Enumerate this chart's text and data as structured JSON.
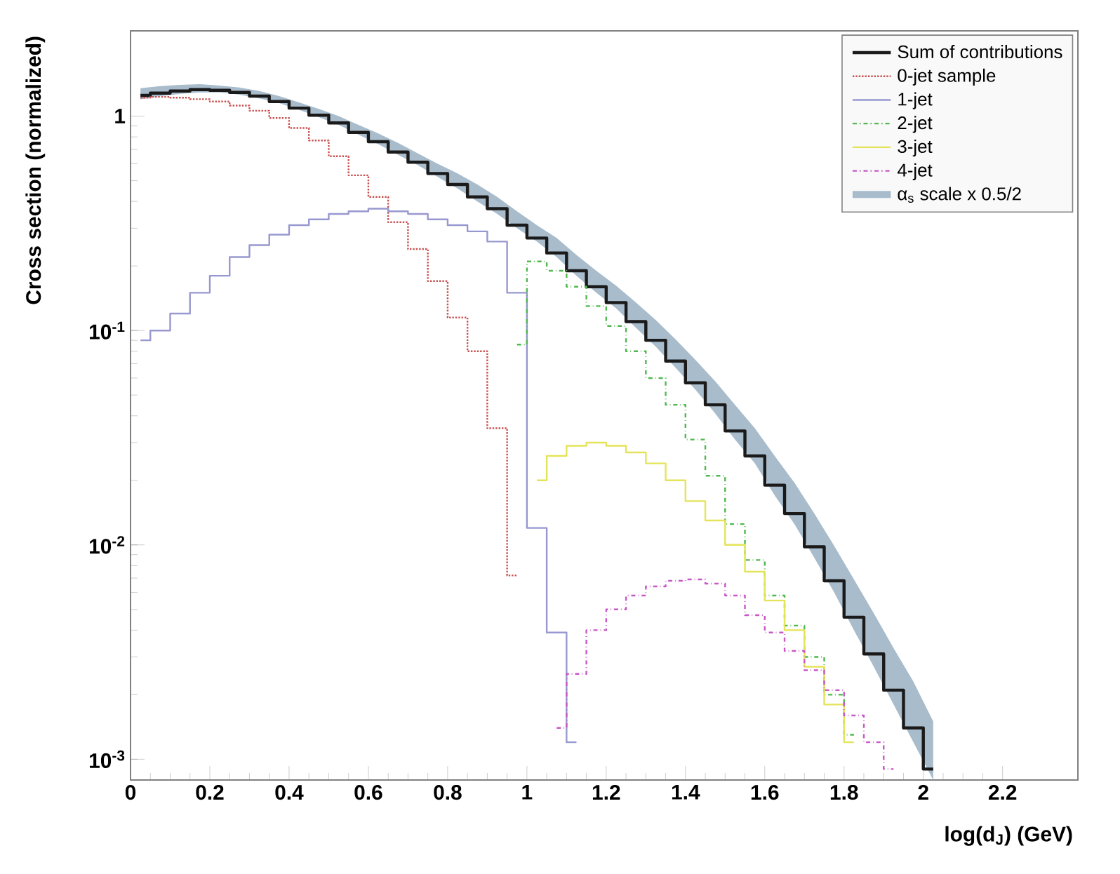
{
  "chart_data": {
    "type": "step",
    "xlabel": "log(d$_{J}$) (GeV)",
    "ylabel": "Cross section (normalized)",
    "log": "y",
    "xlim": [
      0,
      2.39
    ],
    "ylim": [
      0.0008,
      2.5
    ],
    "xticks": [
      0,
      0.2,
      0.4,
      0.6,
      0.8,
      1,
      1.2,
      1.4,
      1.6,
      1.8,
      2,
      2.2
    ],
    "yticks": [
      {
        "value": 0.001,
        "label": "10$^{-3}$"
      },
      {
        "value": 0.01,
        "label": "10$^{-2}$"
      },
      {
        "value": 0.1,
        "label": "10$^{-1}$"
      },
      1
    ],
    "grid": false,
    "marker": "none",
    "legend": "top right",
    "annotations": [
      "α$_{s}$ scale x 0.5/2"
    ],
    "series": [
      {
        "name": "Sum of contributions",
        "color": "#1a1a1a",
        "line_style": "solid",
        "x": [
          0.025,
          0.075,
          0.125,
          0.175,
          0.225,
          0.275,
          0.325,
          0.375,
          0.425,
          0.475,
          0.525,
          0.575,
          0.625,
          0.675,
          0.725,
          0.775,
          0.825,
          0.875,
          0.925,
          0.975,
          1.025,
          1.075,
          1.125,
          1.175,
          1.225,
          1.275,
          1.325,
          1.375,
          1.425,
          1.475,
          1.525,
          1.575,
          1.625,
          1.675,
          1.725,
          1.775,
          1.825,
          1.875,
          1.925,
          1.975,
          2.025
        ],
        "values": [
          1.25,
          1.28,
          1.31,
          1.33,
          1.32,
          1.29,
          1.24,
          1.17,
          1.09,
          1.01,
          0.93,
          0.84,
          0.76,
          0.68,
          0.61,
          0.54,
          0.48,
          0.42,
          0.37,
          0.31,
          0.27,
          0.23,
          0.19,
          0.16,
          0.135,
          0.11,
          0.09,
          0.072,
          0.057,
          0.045,
          0.034,
          0.026,
          0.019,
          0.014,
          0.0098,
          0.0068,
          0.0046,
          0.0031,
          0.0021,
          0.0014,
          0.0009
        ],
        "lower": [
          1.2,
          1.24,
          1.27,
          1.29,
          1.29,
          1.26,
          1.21,
          1.15,
          1.07,
          0.99,
          0.91,
          0.82,
          0.74,
          0.66,
          0.59,
          0.52,
          0.46,
          0.4,
          0.35,
          0.3,
          0.26,
          0.22,
          0.18,
          0.15,
          0.127,
          0.103,
          0.084,
          0.067,
          0.053,
          0.041,
          0.031,
          0.024,
          0.017,
          0.0125,
          0.0087,
          0.006,
          0.004,
          0.0027,
          0.0018,
          0.0012,
          0.0008
        ],
        "upper": [
          1.35,
          1.38,
          1.4,
          1.41,
          1.39,
          1.36,
          1.31,
          1.24,
          1.16,
          1.08,
          1.0,
          0.91,
          0.83,
          0.75,
          0.67,
          0.6,
          0.54,
          0.48,
          0.42,
          0.36,
          0.31,
          0.27,
          0.225,
          0.19,
          0.162,
          0.135,
          0.112,
          0.091,
          0.073,
          0.058,
          0.045,
          0.035,
          0.026,
          0.0195,
          0.014,
          0.0099,
          0.0069,
          0.0048,
          0.0033,
          0.0023,
          0.0015
        ]
      },
      {
        "name": "0-jet sample",
        "color": "#c85050",
        "line_style": "dotted",
        "x": [
          0.025,
          0.075,
          0.125,
          0.175,
          0.225,
          0.275,
          0.325,
          0.375,
          0.425,
          0.475,
          0.525,
          0.575,
          0.625,
          0.675,
          0.725,
          0.775,
          0.825,
          0.875,
          0.925,
          0.975
        ],
        "values": [
          1.22,
          1.23,
          1.22,
          1.2,
          1.17,
          1.12,
          1.06,
          0.98,
          0.88,
          0.77,
          0.65,
          0.53,
          0.42,
          0.32,
          0.24,
          0.17,
          0.115,
          0.08,
          0.035,
          0.0072
        ]
      },
      {
        "name": "1-jet",
        "color": "#9898d0",
        "line_style": "solid",
        "x": [
          0.025,
          0.075,
          0.125,
          0.175,
          0.225,
          0.275,
          0.325,
          0.375,
          0.425,
          0.475,
          0.525,
          0.575,
          0.625,
          0.675,
          0.725,
          0.775,
          0.825,
          0.875,
          0.925,
          0.975,
          1.025,
          1.075,
          1.125
        ],
        "values": [
          0.09,
          0.1,
          0.12,
          0.15,
          0.18,
          0.22,
          0.25,
          0.28,
          0.31,
          0.33,
          0.35,
          0.36,
          0.37,
          0.36,
          0.35,
          0.33,
          0.31,
          0.29,
          0.26,
          0.15,
          0.012,
          0.0039,
          0.0012
        ]
      },
      {
        "name": "2-jet",
        "color": "#50b850",
        "line_style": "dashed",
        "x": [
          0.975,
          1.025,
          1.075,
          1.125,
          1.175,
          1.225,
          1.275,
          1.325,
          1.375,
          1.425,
          1.475,
          1.525,
          1.575,
          1.625,
          1.675,
          1.725,
          1.775,
          1.825
        ],
        "values": [
          0.086,
          0.21,
          0.19,
          0.16,
          0.13,
          0.105,
          0.08,
          0.06,
          0.045,
          0.031,
          0.021,
          0.0125,
          0.0085,
          0.0058,
          0.0042,
          0.003,
          0.002,
          0.0013
        ]
      },
      {
        "name": "3-jet",
        "color": "#e4e45a",
        "line_style": "solid",
        "x": [
          1.025,
          1.075,
          1.125,
          1.175,
          1.225,
          1.275,
          1.325,
          1.375,
          1.425,
          1.475,
          1.525,
          1.575,
          1.625,
          1.675,
          1.725,
          1.775,
          1.825
        ],
        "values": [
          0.02,
          0.026,
          0.029,
          0.03,
          0.029,
          0.027,
          0.024,
          0.02,
          0.016,
          0.013,
          0.01,
          0.0075,
          0.0055,
          0.004,
          0.0027,
          0.0018,
          0.0012
        ]
      },
      {
        "name": "4-jet",
        "color": "#c858c8",
        "line_style": "dashed",
        "x": [
          1.075,
          1.125,
          1.175,
          1.225,
          1.275,
          1.325,
          1.375,
          1.425,
          1.475,
          1.525,
          1.575,
          1.625,
          1.675,
          1.725,
          1.775,
          1.825,
          1.875,
          1.925
        ],
        "values": [
          0.0014,
          0.0025,
          0.004,
          0.005,
          0.0058,
          0.0064,
          0.0068,
          0.0069,
          0.0066,
          0.0058,
          0.0047,
          0.0039,
          0.0032,
          0.0026,
          0.0021,
          0.0016,
          0.0012,
          0.0009
        ]
      }
    ]
  }
}
